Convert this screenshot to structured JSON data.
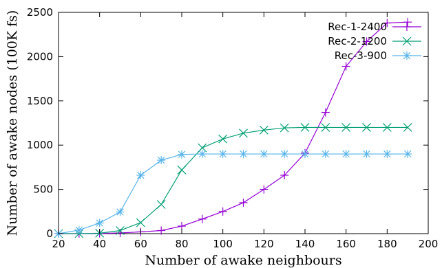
{
  "chart_data": {
    "type": "line",
    "title": "",
    "xlabel": "Number of awake neighbours",
    "ylabel": "Number of awake nodes (100K fs)",
    "xlim": [
      20,
      200
    ],
    "ylim": [
      0,
      2500
    ],
    "x_ticks": [
      "20",
      "40",
      "60",
      "80",
      "100",
      "120",
      "140",
      "160",
      "180",
      "200"
    ],
    "y_ticks": [
      "0",
      "500",
      "1000",
      "1500",
      "2000",
      "2500"
    ],
    "grid": false,
    "legend_position": "top-right",
    "x": [
      20,
      30,
      40,
      50,
      60,
      70,
      80,
      90,
      100,
      110,
      120,
      130,
      140,
      150,
      160,
      170,
      180,
      190
    ],
    "series": [
      {
        "name": "Rec-1-2400",
        "color": "#9400d3",
        "marker": "plus",
        "values": [
          0,
          0,
          2,
          8,
          20,
          35,
          85,
          165,
          250,
          350,
          500,
          660,
          910,
          1370,
          1890,
          2170,
          2380,
          2390
        ]
      },
      {
        "name": "Rec-2-1200",
        "color": "#009e73",
        "marker": "cross",
        "values": [
          0,
          0,
          5,
          35,
          125,
          330,
          720,
          970,
          1070,
          1135,
          1170,
          1195,
          1200,
          1200,
          1200,
          1200,
          1200,
          1200
        ]
      },
      {
        "name": "Rec-3-900",
        "color": "#56b4e9",
        "marker": "star",
        "values": [
          0,
          40,
          120,
          245,
          660,
          830,
          895,
          900,
          900,
          900,
          900,
          900,
          900,
          900,
          900,
          900,
          900,
          900
        ]
      }
    ]
  }
}
